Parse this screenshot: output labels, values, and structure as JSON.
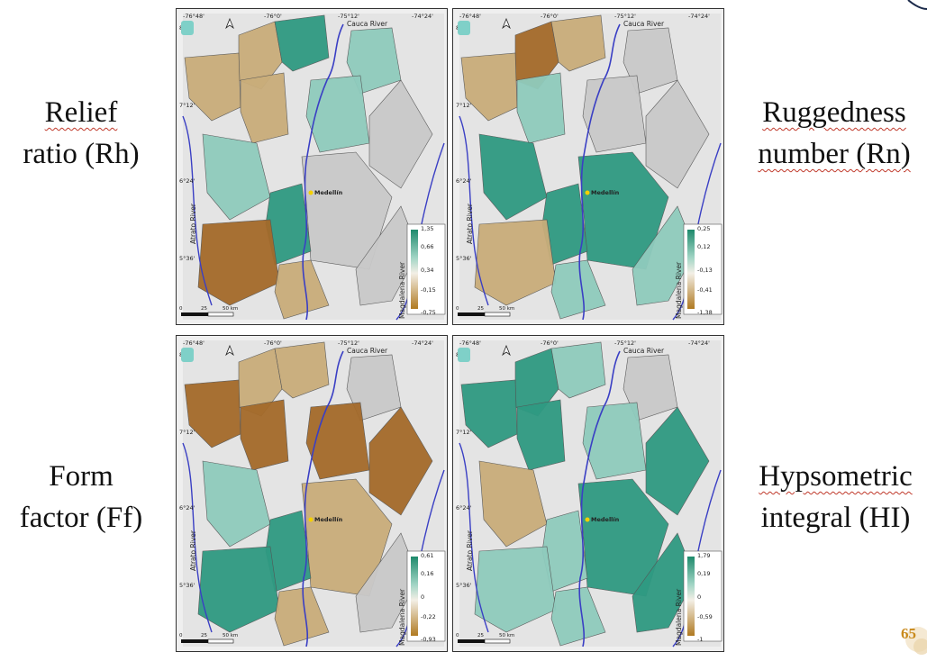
{
  "labels": {
    "rh": {
      "l1": "Relief",
      "l2": "ratio (Rh)"
    },
    "rn": {
      "l1": "Ruggedness",
      "l2": "number (Rn)"
    },
    "ff": {
      "l1": "Form",
      "l2": "factor (Ff)"
    },
    "hi": {
      "l1": "Hypsometric",
      "l2": "integral (HI)"
    }
  },
  "map_text": {
    "lon": [
      "-76°48'",
      "-76°0'",
      "-75°12'",
      "-74°24'"
    ],
    "lat": [
      "8°0'",
      "7°12'",
      "6°24'",
      "5°36'"
    ],
    "cauca": "Cauca River",
    "atrato": "Atrato River",
    "magdalena": "Magdalena River",
    "city": "Medellín",
    "scale": [
      "0",
      "25",
      "50 km"
    ]
  },
  "legends": {
    "rh": [
      "1,35",
      "0,66",
      "0,34",
      "-0,15",
      "-0,75"
    ],
    "rn": [
      "0,25",
      "0,12",
      "-0,13",
      "-0,41",
      "-1,38"
    ],
    "ff": [
      "0,61",
      "0,16",
      "0",
      "-0,22",
      "-0,93"
    ],
    "hi": [
      "1,79",
      "0,19",
      "0",
      "-0,59",
      "-1"
    ]
  },
  "colors": {
    "teal": "#2f9a82",
    "teal_light": "#8fcbbd",
    "tan": "#c9ad7a",
    "brown": "#a46a2a",
    "gray": "#c9c9c9",
    "river": "#3a3fc4"
  },
  "page_number": "65"
}
